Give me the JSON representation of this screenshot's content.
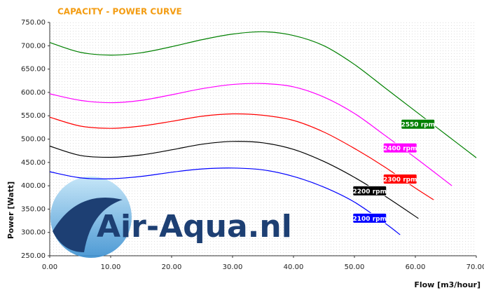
{
  "chart_data": {
    "type": "line",
    "title": "CAPACITY - POWER CURVE",
    "xlabel": "Flow [m3/hour]",
    "ylabel": "Power [Watt]",
    "watermark": "Air-Aqua.nl",
    "xlim": [
      0,
      70
    ],
    "ylim": [
      250,
      750
    ],
    "xticks": [
      {
        "value": 0,
        "label": "0.00"
      },
      {
        "value": 10,
        "label": "10.00"
      },
      {
        "value": 20,
        "label": "20.00"
      },
      {
        "value": 30,
        "label": "30.00"
      },
      {
        "value": 40,
        "label": "40.00"
      },
      {
        "value": 50,
        "label": "50.00"
      },
      {
        "value": 60,
        "label": "60.00"
      },
      {
        "value": 70,
        "label": "70.00"
      }
    ],
    "yticks": [
      {
        "value": 250,
        "label": "250.00"
      },
      {
        "value": 300,
        "label": "300.00"
      },
      {
        "value": 350,
        "label": "350.00"
      },
      {
        "value": 400,
        "label": "400.00"
      },
      {
        "value": 450,
        "label": "450.00"
      },
      {
        "value": 500,
        "label": "500.00"
      },
      {
        "value": 550,
        "label": "550.00"
      },
      {
        "value": 600,
        "label": "600.00"
      },
      {
        "value": 650,
        "label": "650.00"
      },
      {
        "value": 700,
        "label": "700.00"
      },
      {
        "value": 750,
        "label": "750.00"
      }
    ],
    "series": [
      {
        "name": "2550 rpm",
        "color": "#008000",
        "x": [
          0,
          5,
          10,
          15,
          20,
          25,
          30,
          35,
          40,
          45,
          50,
          55,
          60,
          65,
          70
        ],
        "values": [
          707,
          686,
          680,
          685,
          698,
          713,
          725,
          730,
          722,
          700,
          660,
          610,
          560,
          510,
          460
        ]
      },
      {
        "name": "2400 rpm",
        "color": "#ff00ff",
        "x": [
          0,
          5,
          10,
          15,
          20,
          25,
          30,
          35,
          40,
          45,
          50,
          55,
          60,
          66
        ],
        "values": [
          597,
          583,
          578,
          583,
          595,
          608,
          617,
          619,
          612,
          590,
          555,
          508,
          460,
          400
        ]
      },
      {
        "name": "2300 rpm",
        "color": "#ff0000",
        "x": [
          0,
          5,
          10,
          15,
          20,
          25,
          30,
          35,
          40,
          45,
          50,
          55,
          60,
          63
        ],
        "values": [
          547,
          528,
          523,
          528,
          538,
          549,
          554,
          551,
          540,
          515,
          480,
          440,
          395,
          370
        ]
      },
      {
        "name": "2200 rpm",
        "color": "#000000",
        "x": [
          0,
          5,
          10,
          15,
          20,
          25,
          30,
          35,
          40,
          45,
          50,
          55,
          60.5
        ],
        "values": [
          485,
          465,
          461,
          466,
          477,
          489,
          495,
          492,
          478,
          452,
          418,
          378,
          330
        ]
      },
      {
        "name": "2100 rpm",
        "color": "#0000ff",
        "x": [
          0,
          5,
          10,
          15,
          20,
          25,
          30,
          35,
          40,
          45,
          50,
          55,
          57.5
        ],
        "values": [
          430,
          417,
          415,
          420,
          429,
          436,
          438,
          434,
          420,
          397,
          365,
          320,
          295
        ]
      }
    ]
  }
}
